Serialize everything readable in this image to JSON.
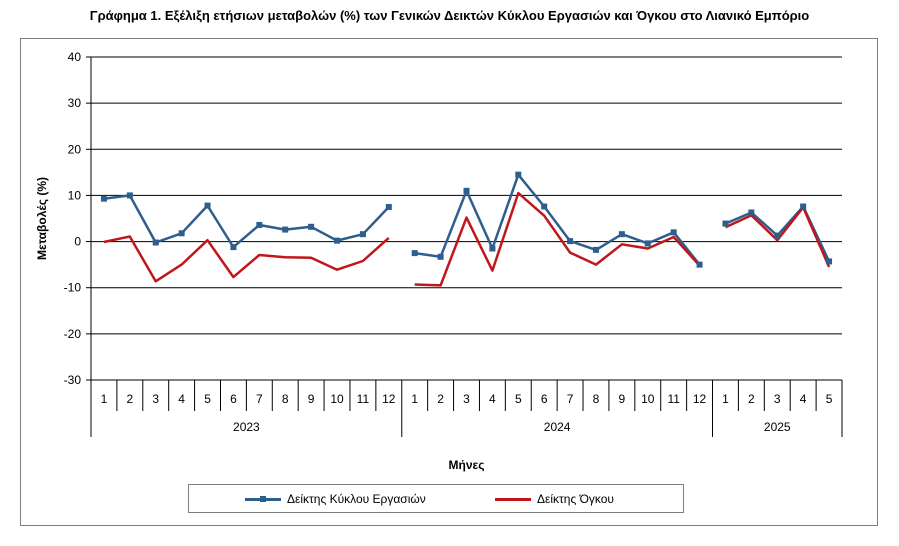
{
  "title": "Γράφημα 1. Εξέλιξη ετήσιων μεταβολών (%) των Γενικών Δεικτών Κύκλου Εργασιών και Όγκου στο Λιανικό Εμπόριο",
  "chart_data": {
    "type": "line",
    "title": "Γράφημα 1. Εξέλιξη ετήσιων μεταβολών (%) των Γενικών Δεικτών Κύκλου Εργασιών και Όγκου στο Λιανικό Εμπόριο",
    "xlabel": "Μήνες",
    "ylabel": "Μεταβολές (%)",
    "ylim": [
      -30,
      40
    ],
    "yticks": [
      "40",
      "30",
      "20",
      "10",
      "0",
      "-10",
      "-20",
      "-30"
    ],
    "grid": true,
    "legend_position": "bottom",
    "categories": [
      "1",
      "2",
      "3",
      "4",
      "5",
      "6",
      "7",
      "8",
      "9",
      "10",
      "11",
      "12",
      "1",
      "2",
      "3",
      "4",
      "5",
      "6",
      "7",
      "8",
      "9",
      "10",
      "11",
      "12",
      "1",
      "2",
      "3",
      "4",
      "5"
    ],
    "year_groups": [
      {
        "label": "2023",
        "count": 12
      },
      {
        "label": "2024",
        "count": 12
      },
      {
        "label": "2025",
        "count": 5
      }
    ],
    "series": [
      {
        "name": "Δείκτης Κύκλου Εργασιών",
        "color": "#2e5e8e",
        "marker": "square",
        "values": [
          9.3,
          10.0,
          -0.2,
          1.8,
          7.8,
          -1.2,
          3.6,
          2.6,
          3.2,
          0.2,
          1.6,
          7.5,
          -2.5,
          -3.3,
          11.0,
          -1.5,
          14.5,
          7.6,
          0.1,
          -1.8,
          1.6,
          -0.4,
          2.0,
          -5.0,
          3.9,
          6.3,
          1.3,
          7.6,
          -4.3
        ]
      },
      {
        "name": "Δείκτης Όγκου",
        "color": "#c0171c",
        "marker": "none",
        "values": [
          -0.1,
          1.1,
          -8.6,
          -5.0,
          0.3,
          -7.7,
          -2.9,
          -3.4,
          -3.5,
          -6.1,
          -4.2,
          0.8,
          -9.3,
          -9.5,
          5.2,
          -6.3,
          10.5,
          5.6,
          -2.4,
          -5.0,
          -0.6,
          -1.5,
          1.0,
          -5.2,
          3.1,
          5.7,
          0.3,
          7.4,
          -5.5
        ]
      }
    ]
  }
}
